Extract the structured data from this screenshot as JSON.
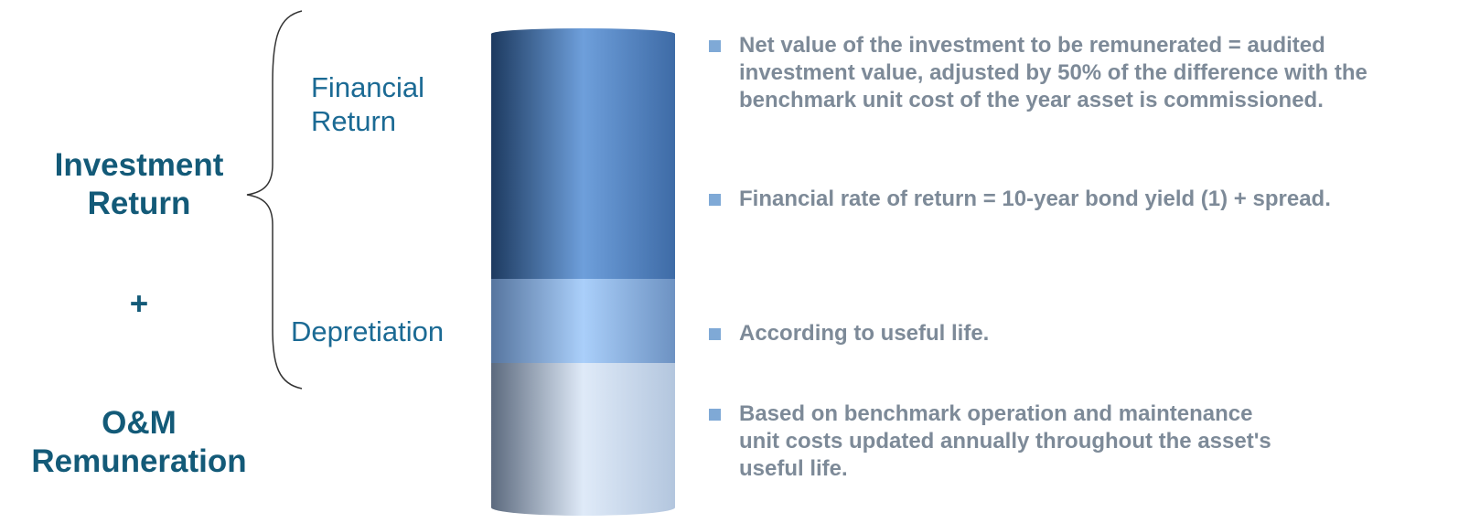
{
  "left_labels": {
    "investment": "Investment Return",
    "plus": "+",
    "om": "O&M Remuneration"
  },
  "brace_labels": {
    "financial": "Financial Return",
    "depreciation": "Depretiation"
  },
  "bullets": [
    "Net value of the investment to be remunerated = audited investment value, adjusted by 50% of the difference with the benchmark unit cost of the year asset is commissioned.",
    "Financial rate of return = 10-year bond yield (1) + spread.",
    "According to useful life.",
    "Based on benchmark operation and maintenance unit costs updated annually throughout the asset's useful life."
  ]
}
